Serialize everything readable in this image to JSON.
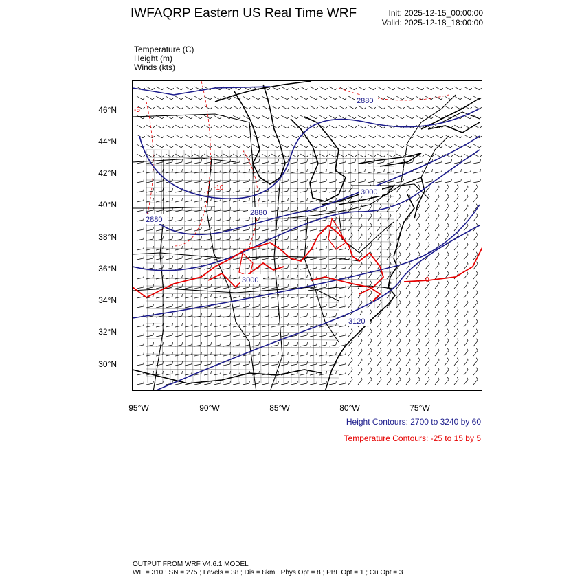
{
  "header": {
    "title": "IWFAQRP Eastern US Real Time WRF",
    "init": "Init: 2025-12-15_00:00:00",
    "valid": "Valid: 2025-12-18_18:00:00"
  },
  "fields": [
    "Temperature   (C)",
    "Height   (m)",
    "Winds   (kts)"
  ],
  "axes": {
    "lat_labels": [
      "46°N",
      "44°N",
      "42°N",
      "40°N",
      "38°N",
      "36°N",
      "34°N",
      "32°N",
      "30°N"
    ],
    "lon_labels": [
      "95°W",
      "90°W",
      "85°W",
      "80°W",
      "75°W"
    ]
  },
  "height_labels": [
    "2880",
    "3000",
    "2880",
    "2880",
    "3000",
    "3120"
  ],
  "temperature_labels": [
    "-10",
    "-5",
    "0"
  ],
  "legend": {
    "height": "Height Contours: 2700 to 3240 by 60",
    "temperature": "Temperature Contours: -25 to 15 by 5"
  },
  "footer": {
    "line1": "OUTPUT FROM WRF V4.6.1 MODEL",
    "line2": "WE = 310 ; SN = 275 ; Levels = 38 ; Dis = 8km ; Phys Opt = 8 ; PBL Opt = 1 ; Cu Opt = 3"
  },
  "colors": {
    "height": "#1c1c8c",
    "temperature": "#e60000",
    "map": "#000000"
  }
}
